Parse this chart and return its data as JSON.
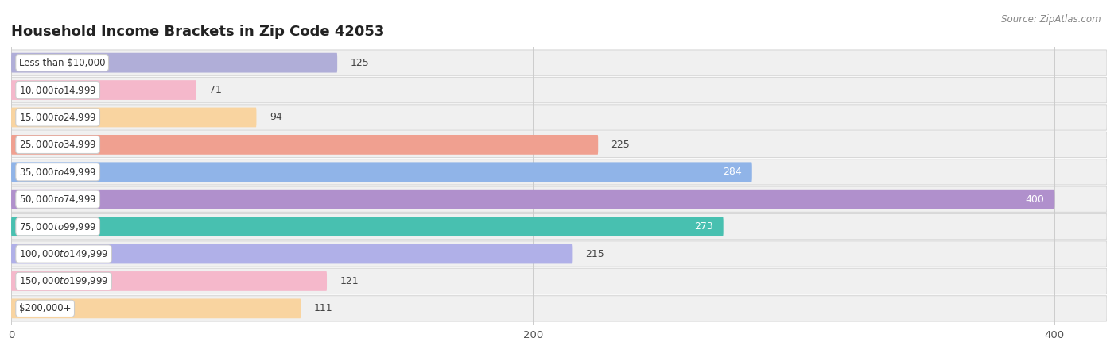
{
  "title": "Household Income Brackets in Zip Code 42053",
  "source": "Source: ZipAtlas.com",
  "categories": [
    "Less than $10,000",
    "$10,000 to $14,999",
    "$15,000 to $24,999",
    "$25,000 to $34,999",
    "$35,000 to $49,999",
    "$50,000 to $74,999",
    "$75,000 to $99,999",
    "$100,000 to $149,999",
    "$150,000 to $199,999",
    "$200,000+"
  ],
  "values": [
    125,
    71,
    94,
    225,
    284,
    400,
    273,
    215,
    121,
    111
  ],
  "bar_colors": [
    "#b0aed8",
    "#f5b8cb",
    "#f9d4a0",
    "#f0a090",
    "#90b4e8",
    "#b090cc",
    "#48c0b0",
    "#b0b0e8",
    "#f5b8cb",
    "#f9d4a0"
  ],
  "label_colors": [
    "dark",
    "dark",
    "dark",
    "dark",
    "white",
    "white",
    "white",
    "dark",
    "dark",
    "dark"
  ],
  "background_color": "#ffffff",
  "row_bg_color": "#f0f0f0",
  "xlim": [
    0,
    420
  ],
  "xticks": [
    0,
    200,
    400
  ],
  "title_fontsize": 13,
  "bar_label_fontsize": 8.5,
  "value_fontsize": 9
}
